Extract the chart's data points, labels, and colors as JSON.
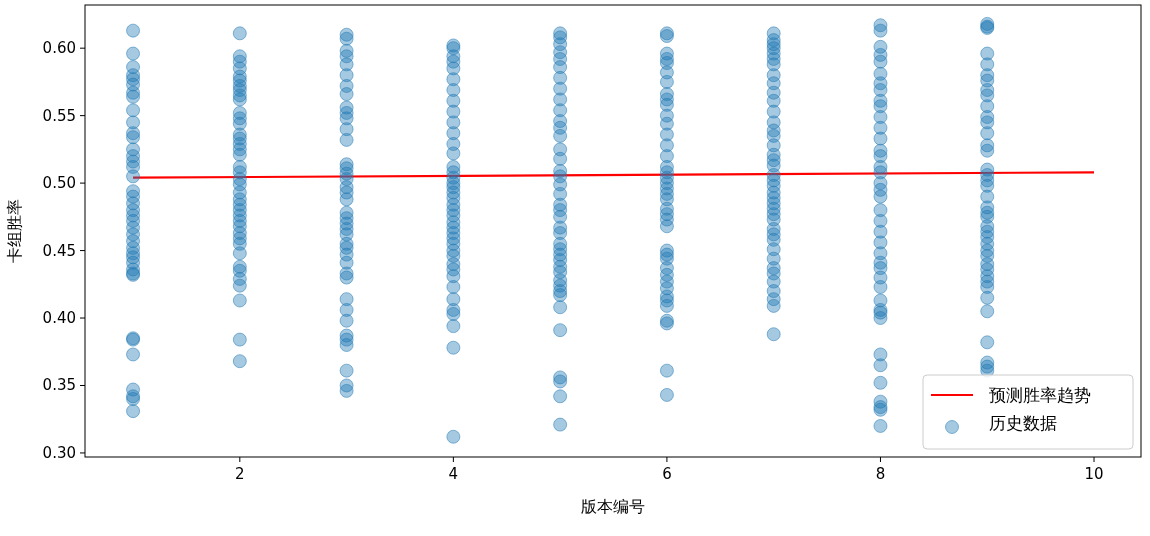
{
  "chart_data": {
    "type": "scatter",
    "xlabel": "版本编号",
    "ylabel": "卡组胜率",
    "xlim": [
      0.55,
      10.44
    ],
    "ylim": [
      0.297,
      0.632
    ],
    "xticks": [
      2,
      4,
      6,
      8,
      10
    ],
    "yticks": [
      {
        "value": 0.3,
        "label": "0.30"
      },
      {
        "value": 0.35,
        "label": "0.35"
      },
      {
        "value": 0.4,
        "label": "0.40"
      },
      {
        "value": 0.45,
        "label": "0.45"
      },
      {
        "value": 0.5,
        "label": "0.50"
      },
      {
        "value": 0.55,
        "label": "0.55"
      },
      {
        "value": 0.6,
        "label": "0.60"
      }
    ],
    "grid": false,
    "legend": "bottom right",
    "series": [
      {
        "type": "line",
        "name": "预测胜率趋势",
        "color": "#ff0000",
        "line_style": "solid",
        "marker": "none",
        "x": [
          1,
          10
        ],
        "values": [
          0.504,
          0.508
        ]
      },
      {
        "name": "历史数据",
        "marker": "circle",
        "color": "#1f77b4",
        "x": [
          1,
          1,
          1,
          1,
          1,
          1,
          1,
          1,
          1,
          1,
          1,
          1,
          1,
          1,
          1,
          1,
          1,
          1,
          1,
          1,
          1,
          1,
          1,
          1,
          1,
          1,
          1,
          1,
          1,
          1,
          1,
          1,
          1,
          1,
          1,
          1,
          1,
          1,
          1,
          1,
          2,
          2,
          2,
          2,
          2,
          2,
          2,
          2,
          2,
          2,
          2,
          2,
          2,
          2,
          2,
          2,
          2,
          2,
          2,
          2,
          2,
          2,
          2,
          2,
          2,
          2,
          2,
          2,
          2,
          2,
          2,
          2,
          2,
          2,
          2,
          2,
          2,
          2,
          2,
          2,
          3,
          3,
          3,
          3,
          3,
          3,
          3,
          3,
          3,
          3,
          3,
          3,
          3,
          3,
          3,
          3,
          3,
          3,
          3,
          3,
          3,
          3,
          3,
          3,
          3,
          3,
          3,
          3,
          3,
          3,
          3,
          3,
          3,
          3,
          3,
          3,
          3,
          3,
          3,
          3,
          4,
          4,
          4,
          4,
          4,
          4,
          4,
          4,
          4,
          4,
          4,
          4,
          4,
          4,
          4,
          4,
          4,
          4,
          4,
          4,
          4,
          4,
          4,
          4,
          4,
          4,
          4,
          4,
          4,
          4,
          4,
          4,
          4,
          4,
          4,
          4,
          4,
          4,
          4,
          4,
          5,
          5,
          5,
          5,
          5,
          5,
          5,
          5,
          5,
          5,
          5,
          5,
          5,
          5,
          5,
          5,
          5,
          5,
          5,
          5,
          5,
          5,
          5,
          5,
          5,
          5,
          5,
          5,
          5,
          5,
          5,
          5,
          5,
          5,
          5,
          5,
          5,
          5,
          5,
          5,
          6,
          6,
          6,
          6,
          6,
          6,
          6,
          6,
          6,
          6,
          6,
          6,
          6,
          6,
          6,
          6,
          6,
          6,
          6,
          6,
          6,
          6,
          6,
          6,
          6,
          6,
          6,
          6,
          6,
          6,
          6,
          6,
          6,
          6,
          6,
          6,
          6,
          6,
          6,
          6,
          7,
          7,
          7,
          7,
          7,
          7,
          7,
          7,
          7,
          7,
          7,
          7,
          7,
          7,
          7,
          7,
          7,
          7,
          7,
          7,
          7,
          7,
          7,
          7,
          7,
          7,
          7,
          7,
          7,
          7,
          7,
          7,
          7,
          7,
          7,
          7,
          7,
          7,
          7,
          7,
          8,
          8,
          8,
          8,
          8,
          8,
          8,
          8,
          8,
          8,
          8,
          8,
          8,
          8,
          8,
          8,
          8,
          8,
          8,
          8,
          8,
          8,
          8,
          8,
          8,
          8,
          8,
          8,
          8,
          8,
          8,
          8,
          8,
          8,
          8,
          8,
          8,
          8,
          8,
          8,
          9,
          9,
          9,
          9,
          9,
          9,
          9,
          9,
          9,
          9,
          9,
          9,
          9,
          9,
          9,
          9,
          9,
          9,
          9,
          9,
          9,
          9,
          9,
          9,
          9,
          9,
          9,
          9,
          9,
          9,
          9,
          9,
          9,
          9,
          9,
          9,
          9,
          9,
          9,
          9
        ],
        "values": [
          0.613,
          0.596,
          0.586,
          0.58,
          0.577,
          0.573,
          0.567,
          0.564,
          0.554,
          0.545,
          0.537,
          0.534,
          0.525,
          0.52,
          0.516,
          0.512,
          0.505,
          0.494,
          0.49,
          0.485,
          0.48,
          0.476,
          0.472,
          0.467,
          0.462,
          0.457,
          0.452,
          0.448,
          0.445,
          0.441,
          0.436,
          0.433,
          0.432,
          0.385,
          0.384,
          0.373,
          0.347,
          0.342,
          0.34,
          0.331,
          0.611,
          0.594,
          0.59,
          0.585,
          0.579,
          0.576,
          0.572,
          0.569,
          0.565,
          0.562,
          0.552,
          0.548,
          0.544,
          0.536,
          0.533,
          0.529,
          0.525,
          0.521,
          0.512,
          0.508,
          0.503,
          0.499,
          0.493,
          0.488,
          0.484,
          0.48,
          0.476,
          0.472,
          0.468,
          0.463,
          0.459,
          0.455,
          0.448,
          0.438,
          0.435,
          0.429,
          0.424,
          0.413,
          0.384,
          0.368,
          0.61,
          0.607,
          0.598,
          0.594,
          0.588,
          0.58,
          0.572,
          0.566,
          0.556,
          0.552,
          0.548,
          0.54,
          0.532,
          0.514,
          0.511,
          0.507,
          0.503,
          0.497,
          0.493,
          0.488,
          0.478,
          0.474,
          0.47,
          0.466,
          0.462,
          0.455,
          0.452,
          0.447,
          0.441,
          0.433,
          0.43,
          0.414,
          0.406,
          0.398,
          0.387,
          0.384,
          0.38,
          0.361,
          0.35,
          0.346,
          0.602,
          0.6,
          0.594,
          0.59,
          0.585,
          0.577,
          0.569,
          0.561,
          0.553,
          0.545,
          0.537,
          0.529,
          0.522,
          0.512,
          0.508,
          0.504,
          0.5,
          0.497,
          0.493,
          0.489,
          0.484,
          0.48,
          0.476,
          0.471,
          0.467,
          0.463,
          0.459,
          0.455,
          0.45,
          0.446,
          0.44,
          0.436,
          0.431,
          0.423,
          0.414,
          0.406,
          0.403,
          0.394,
          0.378,
          0.312,
          0.611,
          0.608,
          0.603,
          0.597,
          0.592,
          0.586,
          0.578,
          0.57,
          0.562,
          0.554,
          0.546,
          0.541,
          0.535,
          0.525,
          0.518,
          0.509,
          0.505,
          0.499,
          0.492,
          0.484,
          0.48,
          0.475,
          0.467,
          0.463,
          0.455,
          0.451,
          0.447,
          0.443,
          0.438,
          0.434,
          0.428,
          0.424,
          0.42,
          0.417,
          0.408,
          0.391,
          0.356,
          0.353,
          0.342,
          0.321,
          0.611,
          0.609,
          0.596,
          0.592,
          0.589,
          0.582,
          0.575,
          0.566,
          0.558,
          0.55,
          0.544,
          0.536,
          0.528,
          0.52,
          0.512,
          0.508,
          0.504,
          0.5,
          0.496,
          0.492,
          0.488,
          0.481,
          0.477,
          0.473,
          0.468,
          0.45,
          0.447,
          0.444,
          0.437,
          0.432,
          0.427,
          0.422,
          0.416,
          0.413,
          0.409,
          0.398,
          0.396,
          0.361,
          0.343,
          0.562,
          0.611,
          0.606,
          0.603,
          0.6,
          0.596,
          0.592,
          0.588,
          0.58,
          0.574,
          0.567,
          0.561,
          0.553,
          0.545,
          0.539,
          0.535,
          0.528,
          0.521,
          0.517,
          0.513,
          0.506,
          0.502,
          0.498,
          0.493,
          0.489,
          0.485,
          0.481,
          0.477,
          0.473,
          0.466,
          0.462,
          0.458,
          0.451,
          0.444,
          0.437,
          0.433,
          0.427,
          0.42,
          0.414,
          0.409,
          0.388,
          0.617,
          0.613,
          0.601,
          0.595,
          0.59,
          0.581,
          0.574,
          0.569,
          0.561,
          0.557,
          0.549,
          0.541,
          0.533,
          0.524,
          0.52,
          0.512,
          0.508,
          0.5,
          0.495,
          0.49,
          0.48,
          0.472,
          0.464,
          0.456,
          0.448,
          0.441,
          0.437,
          0.43,
          0.423,
          0.413,
          0.406,
          0.404,
          0.4,
          0.373,
          0.365,
          0.352,
          0.338,
          0.334,
          0.332,
          0.32,
          0.618,
          0.616,
          0.615,
          0.596,
          0.588,
          0.58,
          0.576,
          0.569,
          0.565,
          0.557,
          0.549,
          0.545,
          0.537,
          0.528,
          0.524,
          0.51,
          0.506,
          0.502,
          0.498,
          0.49,
          0.482,
          0.478,
          0.475,
          0.468,
          0.464,
          0.46,
          0.455,
          0.45,
          0.446,
          0.44,
          0.436,
          0.431,
          0.427,
          0.423,
          0.415,
          0.405,
          0.382,
          0.367,
          0.364,
          0.361
        ]
      }
    ]
  }
}
